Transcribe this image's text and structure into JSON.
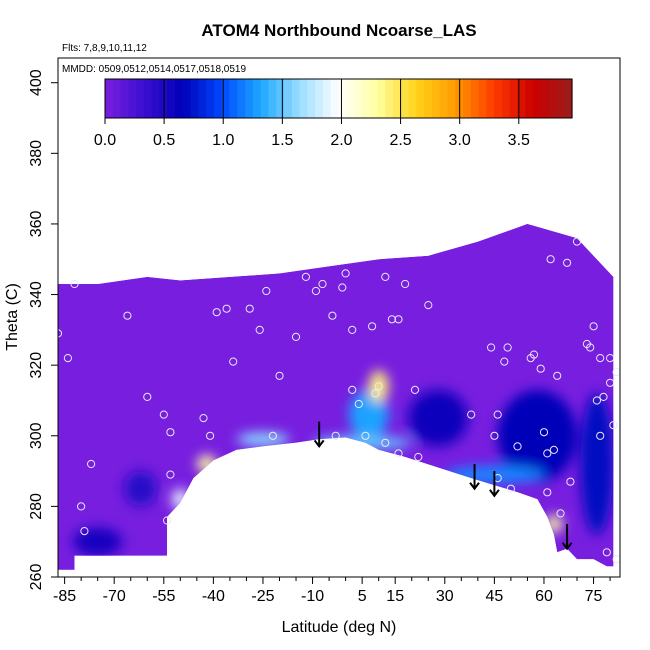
{
  "chart_data": {
    "type": "heatmap",
    "title": "ATOM4 Northbound Ncoarse_LAS",
    "annotations": {
      "flights": "Flts: 7,8,9,10,11,12",
      "dates": "MMDD: 0509,0512,0514,0517,0518,0519"
    },
    "xlabel": "Latitude (deg N)",
    "ylabel": "Theta (C)",
    "xlim": [
      -87,
      83
    ],
    "ylim": [
      260,
      407
    ],
    "x_ticks": [
      -85,
      -70,
      -55,
      -40,
      -25,
      -10,
      5,
      15,
      30,
      45,
      60,
      75
    ],
    "y_ticks": [
      260,
      280,
      300,
      320,
      340,
      360,
      380,
      400
    ],
    "colorbar": {
      "ticks": [
        0.0,
        0.5,
        1.0,
        1.5,
        2.0,
        2.5,
        3.0,
        3.5
      ],
      "range": [
        0,
        3.95
      ],
      "colors": [
        "#7b1fe0",
        "#3a0fd0",
        "#0000b8",
        "#0048ff",
        "#1ea8ff",
        "#9adcff",
        "#ffffff",
        "#ffffa0",
        "#ffd21a",
        "#ff9a00",
        "#ff3a00",
        "#cc0000",
        "#9a1d1d"
      ]
    },
    "outline": [
      [
        -87,
        262
      ],
      [
        -82,
        262
      ],
      [
        -82,
        266
      ],
      [
        -54,
        266
      ],
      [
        -54,
        277
      ],
      [
        -50,
        281
      ],
      [
        -46,
        288
      ],
      [
        -40,
        293
      ],
      [
        -33,
        296
      ],
      [
        -25,
        297
      ],
      [
        -15,
        298
      ],
      [
        -8,
        299
      ],
      [
        0,
        299.5
      ],
      [
        6,
        298
      ],
      [
        10,
        296
      ],
      [
        18,
        294
      ],
      [
        28,
        291
      ],
      [
        38,
        288
      ],
      [
        45,
        286
      ],
      [
        52,
        284
      ],
      [
        58,
        282
      ],
      [
        61,
        277
      ],
      [
        63,
        272
      ],
      [
        64,
        267
      ],
      [
        67,
        268
      ],
      [
        70,
        265
      ],
      [
        75,
        265
      ],
      [
        79,
        263
      ],
      [
        81,
        263
      ],
      [
        81,
        345
      ],
      [
        70,
        356
      ],
      [
        55,
        360
      ],
      [
        40,
        355
      ],
      [
        25,
        351
      ],
      [
        10,
        350
      ],
      [
        -5,
        348
      ],
      [
        -20,
        346
      ],
      [
        -35,
        345
      ],
      [
        -50,
        344
      ],
      [
        -60,
        345
      ],
      [
        -75,
        343
      ],
      [
        -87,
        343
      ]
    ],
    "background_value": 0.02,
    "features": [
      {
        "lat": 10,
        "theta": 314,
        "value": 2.4,
        "width_deg": 6,
        "height_theta": 9
      },
      {
        "lat": 7,
        "theta": 306,
        "value": 1.3,
        "width_deg": 12,
        "height_theta": 14
      },
      {
        "lat": -42,
        "theta": 292,
        "value": 2.3,
        "width_deg": 6,
        "height_theta": 5
      },
      {
        "lat": -50,
        "theta": 282,
        "value": 1.9,
        "width_deg": 5,
        "height_theta": 6
      },
      {
        "lat": -25,
        "theta": 299,
        "value": 1.6,
        "width_deg": 16,
        "height_theta": 4
      },
      {
        "lat": 5,
        "theta": 298,
        "value": 1.5,
        "width_deg": 30,
        "height_theta": 4
      },
      {
        "lat": 45,
        "theta": 289,
        "value": 1.2,
        "width_deg": 30,
        "height_theta": 5
      },
      {
        "lat": 63,
        "theta": 275,
        "value": 2.3,
        "width_deg": 5,
        "height_theta": 5
      },
      {
        "lat": 58,
        "theta": 300,
        "value": 0.65,
        "width_deg": 24,
        "height_theta": 26
      },
      {
        "lat": 76,
        "theta": 292,
        "value": 0.7,
        "width_deg": 10,
        "height_theta": 40
      },
      {
        "lat": 28,
        "theta": 305,
        "value": 0.6,
        "width_deg": 18,
        "height_theta": 16
      },
      {
        "lat": -75,
        "theta": 270,
        "value": 0.55,
        "width_deg": 15,
        "height_theta": 8
      },
      {
        "lat": -62,
        "theta": 285,
        "value": 0.45,
        "width_deg": 10,
        "height_theta": 10
      }
    ],
    "flight_points": [
      [
        -87,
        329
      ],
      [
        -84,
        322
      ],
      [
        -82,
        343
      ],
      [
        -80,
        280
      ],
      [
        -79,
        273
      ],
      [
        -77,
        292
      ],
      [
        -66,
        334
      ],
      [
        -60,
        311
      ],
      [
        -55,
        306
      ],
      [
        -53,
        301
      ],
      [
        -53,
        289
      ],
      [
        -54,
        276
      ],
      [
        -43,
        305
      ],
      [
        -41,
        300
      ],
      [
        -39,
        335
      ],
      [
        -36,
        336
      ],
      [
        -34,
        321
      ],
      [
        -29,
        336
      ],
      [
        -26,
        330
      ],
      [
        -24,
        341
      ],
      [
        -22,
        300
      ],
      [
        -20,
        317
      ],
      [
        -15,
        328
      ],
      [
        -12,
        345
      ],
      [
        -9,
        341
      ],
      [
        -7,
        343
      ],
      [
        -4,
        334
      ],
      [
        -3,
        300
      ],
      [
        -1,
        342
      ],
      [
        0,
        346
      ],
      [
        2,
        330
      ],
      [
        2,
        313
      ],
      [
        4,
        309
      ],
      [
        6,
        300
      ],
      [
        8,
        331
      ],
      [
        9,
        312
      ],
      [
        10,
        314
      ],
      [
        12,
        345
      ],
      [
        12,
        298
      ],
      [
        14,
        333
      ],
      [
        16,
        333
      ],
      [
        16,
        295
      ],
      [
        18,
        343
      ],
      [
        21,
        313
      ],
      [
        22,
        294
      ],
      [
        25,
        337
      ],
      [
        38,
        306
      ],
      [
        44,
        325
      ],
      [
        45,
        300
      ],
      [
        46,
        306
      ],
      [
        46,
        288
      ],
      [
        48,
        321
      ],
      [
        49,
        325
      ],
      [
        50,
        285
      ],
      [
        52,
        297
      ],
      [
        56,
        322
      ],
      [
        57,
        323
      ],
      [
        59,
        319
      ],
      [
        60,
        301
      ],
      [
        61,
        295
      ],
      [
        61,
        284
      ],
      [
        62,
        350
      ],
      [
        63,
        296
      ],
      [
        64,
        317
      ],
      [
        65,
        278
      ],
      [
        67,
        349
      ],
      [
        68,
        287
      ],
      [
        70,
        355
      ],
      [
        73,
        326
      ],
      [
        74,
        325
      ],
      [
        75,
        331
      ],
      [
        76,
        310
      ],
      [
        77,
        300
      ],
      [
        77,
        322
      ],
      [
        78,
        311
      ],
      [
        79,
        267
      ],
      [
        80,
        322
      ],
      [
        80,
        315
      ],
      [
        81,
        303
      ],
      [
        82,
        318
      ],
      [
        82,
        265
      ]
    ],
    "arrows": [
      {
        "lat": -8,
        "theta_top": 304,
        "theta_bottom": 297
      },
      {
        "lat": 39,
        "theta_top": 292,
        "theta_bottom": 285
      },
      {
        "lat": 45,
        "theta_top": 290,
        "theta_bottom": 283
      },
      {
        "lat": 67,
        "theta_top": 275,
        "theta_bottom": 268
      }
    ]
  }
}
